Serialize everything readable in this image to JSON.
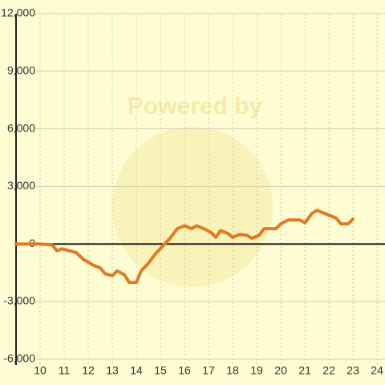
{
  "chart_data": {
    "type": "line",
    "watermark": "Powered by",
    "x": [
      9,
      10,
      10.5,
      10.7,
      10.9,
      11.2,
      11.5,
      11.8,
      12.2,
      12.5,
      12.7,
      13,
      13.2,
      13.5,
      13.7,
      14,
      14.2,
      14.5,
      14.8,
      15.1,
      15.4,
      15.7,
      16,
      16.3,
      16.5,
      16.8,
      17.1,
      17.3,
      17.5,
      17.8,
      18,
      18.3,
      18.6,
      18.8,
      19.1,
      19.3,
      19.8,
      20,
      20.3,
      20.8,
      21,
      21.3,
      21.5,
      21.8,
      22.3,
      22.5,
      22.8,
      23
    ],
    "series": [
      {
        "color": "#e07b24",
        "values": [
          0,
          0,
          -50,
          -350,
          -250,
          -350,
          -450,
          -800,
          -1100,
          -1250,
          -1550,
          -1650,
          -1400,
          -1600,
          -2000,
          -2000,
          -1400,
          -1000,
          -500,
          -100,
          300,
          800,
          950,
          800,
          950,
          800,
          600,
          350,
          700,
          550,
          350,
          500,
          450,
          300,
          450,
          800,
          800,
          1050,
          1250,
          1250,
          1100,
          1600,
          1750,
          1600,
          1350,
          1050,
          1050,
          1300
        ]
      }
    ],
    "xlim": [
      9,
      24.33
    ],
    "xticks": [
      10,
      11,
      12,
      13,
      14,
      15,
      16,
      17,
      18,
      19,
      20,
      21,
      22,
      23,
      24
    ],
    "ylim": [
      -6300,
      12000
    ],
    "yticks": [
      {
        "value": 12000,
        "label": "12,000"
      },
      {
        "value": 9000,
        "label": "9,000"
      },
      {
        "value": 6000,
        "label": "6,000"
      },
      {
        "value": 3000,
        "label": "3,000"
      },
      0,
      {
        "value": -3000,
        "label": "-3,000"
      },
      {
        "value": -6000,
        "label": "-6,000"
      }
    ],
    "grid": true
  }
}
